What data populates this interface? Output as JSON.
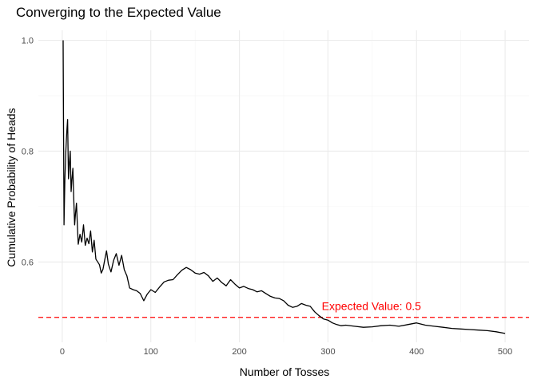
{
  "chart_data": {
    "type": "line",
    "title": "Converging to the Expected Value",
    "xlabel": "Number of Tosses",
    "ylabel": "Cumulative Probability of Heads",
    "xlim": [
      -27,
      527
    ],
    "ylim": [
      0.455,
      1.018
    ],
    "x_ticks": [
      0,
      100,
      200,
      300,
      400,
      500
    ],
    "y_ticks": [
      0.6,
      0.8,
      1.0
    ],
    "x_tick_labels": [
      "0",
      "100",
      "200",
      "300",
      "400",
      "500"
    ],
    "y_tick_labels": [
      "0.6",
      "0.8",
      "1.0"
    ],
    "grid": true,
    "colors": {
      "line": "#000000",
      "reference": "#ff0000",
      "grid": "#ebebeb"
    },
    "series": [
      {
        "x": [
          1,
          2,
          3,
          4,
          5,
          6,
          7,
          8,
          9,
          10,
          11,
          12,
          13,
          14,
          15,
          16,
          17,
          18,
          20,
          22,
          24,
          26,
          28,
          30,
          32,
          34,
          36,
          38,
          40,
          42,
          44,
          46,
          48,
          50,
          52,
          55,
          58,
          61,
          64,
          67,
          70,
          73,
          76,
          80,
          84,
          88,
          92,
          96,
          100,
          105,
          110,
          115,
          120,
          125,
          130,
          135,
          140,
          145,
          150,
          155,
          160,
          165,
          170,
          175,
          180,
          185,
          190,
          195,
          200,
          205,
          210,
          215,
          220,
          225,
          230,
          235,
          240,
          245,
          250,
          255,
          260,
          265,
          270,
          275,
          280,
          285,
          290,
          295,
          300,
          305,
          310,
          315,
          320,
          330,
          340,
          350,
          360,
          370,
          380,
          390,
          400,
          410,
          420,
          430,
          440,
          450,
          460,
          470,
          480,
          490,
          500
        ],
        "values": [
          1.0,
          0.667,
          0.75,
          0.8,
          0.833,
          0.857,
          0.75,
          0.778,
          0.8,
          0.727,
          0.75,
          0.769,
          0.714,
          0.667,
          0.688,
          0.706,
          0.667,
          0.632,
          0.65,
          0.636,
          0.667,
          0.63,
          0.643,
          0.633,
          0.656,
          0.618,
          0.639,
          0.605,
          0.6,
          0.595,
          0.58,
          0.587,
          0.604,
          0.62,
          0.596,
          0.582,
          0.603,
          0.615,
          0.594,
          0.612,
          0.586,
          0.575,
          0.553,
          0.55,
          0.548,
          0.543,
          0.53,
          0.542,
          0.55,
          0.545,
          0.555,
          0.564,
          0.567,
          0.568,
          0.577,
          0.585,
          0.59,
          0.586,
          0.58,
          0.578,
          0.581,
          0.575,
          0.565,
          0.571,
          0.563,
          0.557,
          0.568,
          0.56,
          0.553,
          0.556,
          0.552,
          0.55,
          0.546,
          0.548,
          0.543,
          0.538,
          0.535,
          0.534,
          0.53,
          0.522,
          0.518,
          0.52,
          0.525,
          0.522,
          0.52,
          0.51,
          0.503,
          0.497,
          0.495,
          0.49,
          0.487,
          0.485,
          0.486,
          0.484,
          0.482,
          0.483,
          0.485,
          0.486,
          0.484,
          0.487,
          0.49,
          0.486,
          0.484,
          0.482,
          0.48,
          0.479,
          0.478,
          0.477,
          0.476,
          0.474,
          0.471
        ]
      }
    ],
    "reference_line": {
      "y": 0.5,
      "style": "dashed"
    },
    "annotation": {
      "text": "Expected Value: 0.5",
      "x": 293,
      "y": 0.5
    }
  }
}
